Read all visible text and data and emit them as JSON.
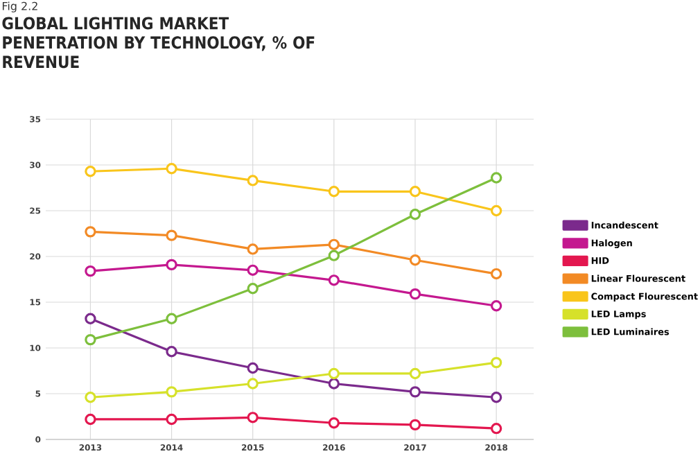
{
  "chart_data": {
    "type": "line",
    "title": "GLOBAL LIGHTING MARKET PENETRATION BY TECHNOLOGY, % OF REVENUE",
    "annotations": [
      "Fig 2.2"
    ],
    "categories": [
      "2013",
      "2014",
      "2015",
      "2016",
      "2017",
      "2018"
    ],
    "ylim": [
      0,
      35
    ],
    "yticks": [
      0,
      5,
      10,
      15,
      20,
      25,
      30,
      35
    ],
    "grid": true,
    "legend": "right",
    "marker": "circle",
    "line_style": "solid",
    "series": [
      {
        "name": "Incandescent",
        "color": "#7b2a8c",
        "values": [
          13.2,
          9.6,
          7.8,
          6.1,
          5.2,
          4.6
        ]
      },
      {
        "name": "Halogen",
        "color": "#c4188f",
        "values": [
          18.4,
          19.1,
          18.5,
          17.4,
          15.9,
          14.6
        ]
      },
      {
        "name": "HID",
        "color": "#e3174f",
        "values": [
          2.2,
          2.2,
          2.4,
          1.8,
          1.6,
          1.2
        ]
      },
      {
        "name": "Linear Flourescent",
        "color": "#f28a25",
        "values": [
          22.7,
          22.3,
          20.8,
          21.3,
          19.6,
          18.1
        ]
      },
      {
        "name": "Compact Flourescent",
        "color": "#f9c51b",
        "values": [
          29.3,
          29.6,
          28.3,
          27.1,
          27.1,
          25.0
        ]
      },
      {
        "name": "LED Lamps",
        "color": "#d6e12a",
        "values": [
          4.6,
          5.2,
          6.1,
          7.2,
          7.2,
          8.4
        ]
      },
      {
        "name": "LED Luminaires",
        "color": "#7dbf3c",
        "values": [
          10.9,
          13.2,
          16.5,
          20.1,
          24.6,
          28.6
        ]
      }
    ]
  }
}
